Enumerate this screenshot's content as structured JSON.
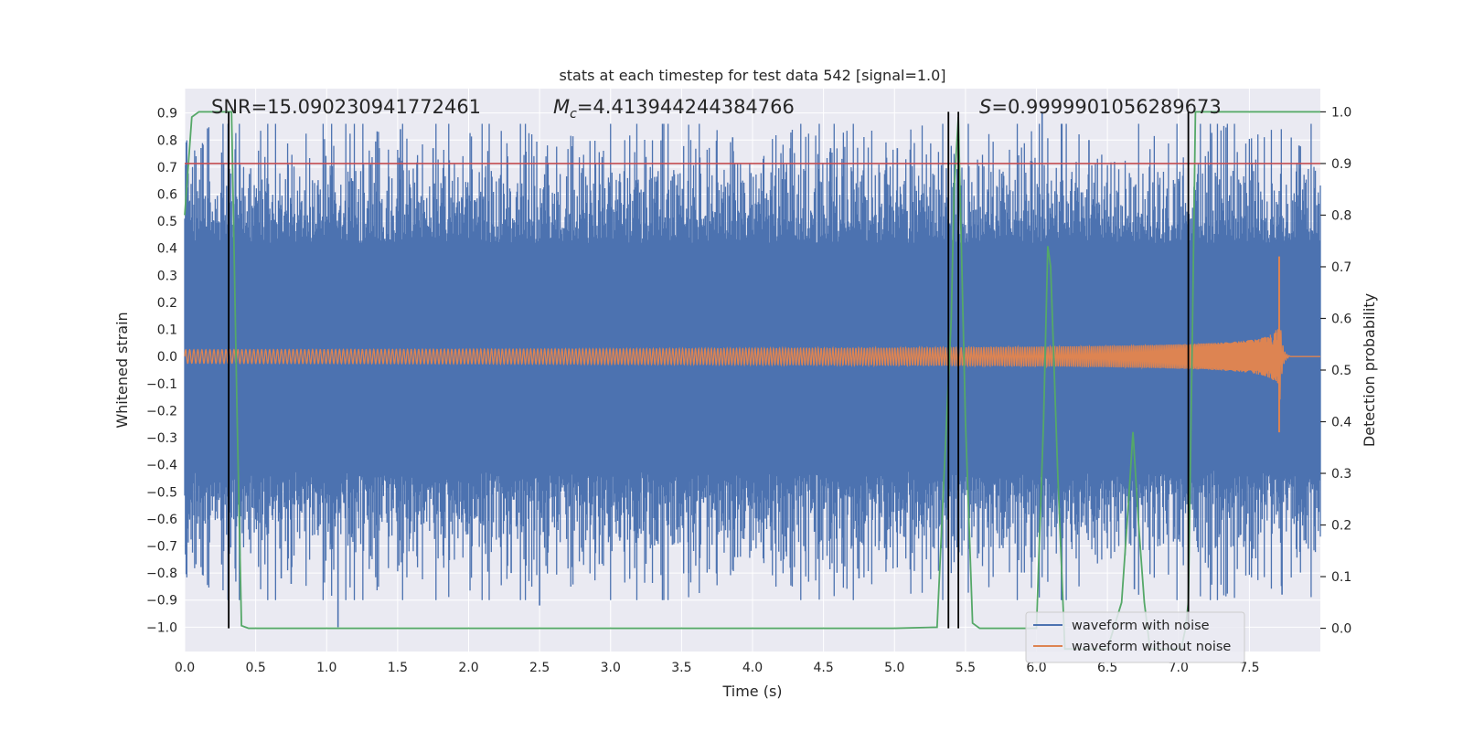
{
  "chart_data": {
    "type": "line",
    "title": "stats at each timestep for test data 542 [signal=1.0]",
    "xlabel": "Time (s)",
    "ylabel_left": "Whitened strain",
    "ylabel_right": "Detection probability",
    "xlim": [
      0.0,
      8.0
    ],
    "ylim_left": [
      -1.09,
      0.99
    ],
    "ylim_right": [
      -0.045,
      1.045
    ],
    "x_ticks": [
      0.0,
      0.5,
      1.0,
      1.5,
      2.0,
      2.5,
      3.0,
      3.5,
      4.0,
      4.5,
      5.0,
      5.5,
      6.0,
      6.5,
      7.0,
      7.5
    ],
    "x_tick_labels": [
      "0.0",
      "0.5",
      "1.0",
      "1.5",
      "2.0",
      "2.5",
      "3.0",
      "3.5",
      "4.0",
      "4.5",
      "5.0",
      "5.5",
      "6.0",
      "6.5",
      "7.0",
      "7.5"
    ],
    "y_left_ticks": [
      -1.0,
      -0.9,
      -0.8,
      -0.7,
      -0.6,
      -0.5,
      -0.4,
      -0.3,
      -0.2,
      -0.1,
      0.0,
      0.1,
      0.2,
      0.3,
      0.4,
      0.5,
      0.6,
      0.7,
      0.8,
      0.9
    ],
    "y_left_tick_labels": [
      "−1.0",
      "−0.9",
      "−0.8",
      "−0.7",
      "−0.6",
      "−0.5",
      "−0.4",
      "−0.3",
      "−0.2",
      "−0.1",
      "0.0",
      "0.1",
      "0.2",
      "0.3",
      "0.4",
      "0.5",
      "0.6",
      "0.7",
      "0.8",
      "0.9"
    ],
    "y_right_ticks": [
      0.0,
      0.1,
      0.2,
      0.3,
      0.4,
      0.5,
      0.6,
      0.7,
      0.8,
      0.9,
      1.0
    ],
    "y_right_tick_labels": [
      "0.0",
      "0.1",
      "0.2",
      "0.3",
      "0.4",
      "0.5",
      "0.6",
      "0.7",
      "0.8",
      "0.9",
      "1.0"
    ],
    "annotations": {
      "snr": "SNR=15.090230941772461",
      "mc_symbol": "M",
      "mc_subscript": "c",
      "mc_value": "=4.413944244384766",
      "s_symbol": "S",
      "s_value": "=0.9999901056289673"
    },
    "threshold": {
      "value": 0.9,
      "axis": "right",
      "color": "#c44e52"
    },
    "event_lines": [
      0.31,
      5.38,
      5.45,
      7.07
    ],
    "series": [
      {
        "name": "waveform with noise",
        "color": "#4c72b0",
        "axis": "left",
        "kind": "noise",
        "envelope_mean": 0.42,
        "noise_std": 0.2,
        "extremes": [
          [
            1.08,
            -1.0
          ],
          [
            1.52,
            0.84
          ],
          [
            2.5,
            -0.92
          ],
          [
            3.86,
            0.81
          ],
          [
            6.04,
            0.9
          ],
          [
            6.69,
            -0.86
          ],
          [
            0.68,
            -0.82
          ],
          [
            0.75,
            -0.84
          ],
          [
            1.37,
            0.77
          ],
          [
            1.75,
            0.77
          ],
          [
            4.55,
            0.77
          ],
          [
            6.37,
            0.8
          ],
          [
            7.73,
            -0.88
          ],
          [
            7.85,
            0.78
          ],
          [
            5.02,
            0.77
          ],
          [
            4.75,
            -0.82
          ],
          [
            3.55,
            -0.8
          ],
          [
            2.3,
            -0.8
          ]
        ]
      },
      {
        "name": "waveform without noise",
        "color": "#dd8452",
        "axis": "left",
        "kind": "chirp",
        "start_amplitude": 0.025,
        "coalescence_time": 7.72,
        "peak_amplitude": 0.37,
        "start_frequency": 35
      },
      {
        "name": "detection probability",
        "color": "#55a868",
        "axis": "right",
        "kind": "line",
        "x": [
          0.0,
          0.05,
          0.1,
          0.15,
          0.2,
          0.25,
          0.3,
          0.33,
          0.37,
          0.4,
          0.45,
          0.5,
          5.0,
          5.3,
          5.35,
          5.4,
          5.42,
          5.45,
          5.5,
          5.55,
          5.6,
          5.95,
          6.0,
          6.05,
          6.08,
          6.1,
          6.15,
          6.2,
          6.5,
          6.6,
          6.65,
          6.68,
          6.72,
          6.76,
          6.8,
          6.85,
          7.0,
          7.02,
          7.05,
          7.07,
          7.1,
          7.12,
          7.15,
          7.2,
          8.0
        ],
        "y": [
          0.8,
          0.99,
          1.0,
          1.0,
          1.0,
          1.0,
          1.0,
          1.0,
          0.4,
          0.005,
          0.0,
          0.0,
          0.0,
          0.002,
          0.3,
          0.6,
          0.85,
          0.99,
          0.4,
          0.01,
          0.0,
          0.0,
          0.0,
          0.4,
          0.74,
          0.7,
          0.3,
          -0.04,
          -0.04,
          0.05,
          0.25,
          0.38,
          0.2,
          0.05,
          -0.04,
          -0.04,
          -0.04,
          -0.04,
          0.0,
          0.05,
          0.6,
          1.0,
          1.0,
          1.0,
          1.0
        ]
      }
    ],
    "legend": {
      "position": "lower-right",
      "entries": [
        {
          "label": "waveform with noise",
          "color": "#4c72b0"
        },
        {
          "label": "waveform without noise",
          "color": "#dd8452"
        }
      ]
    },
    "grid": true,
    "background": "#eaeaf2"
  }
}
